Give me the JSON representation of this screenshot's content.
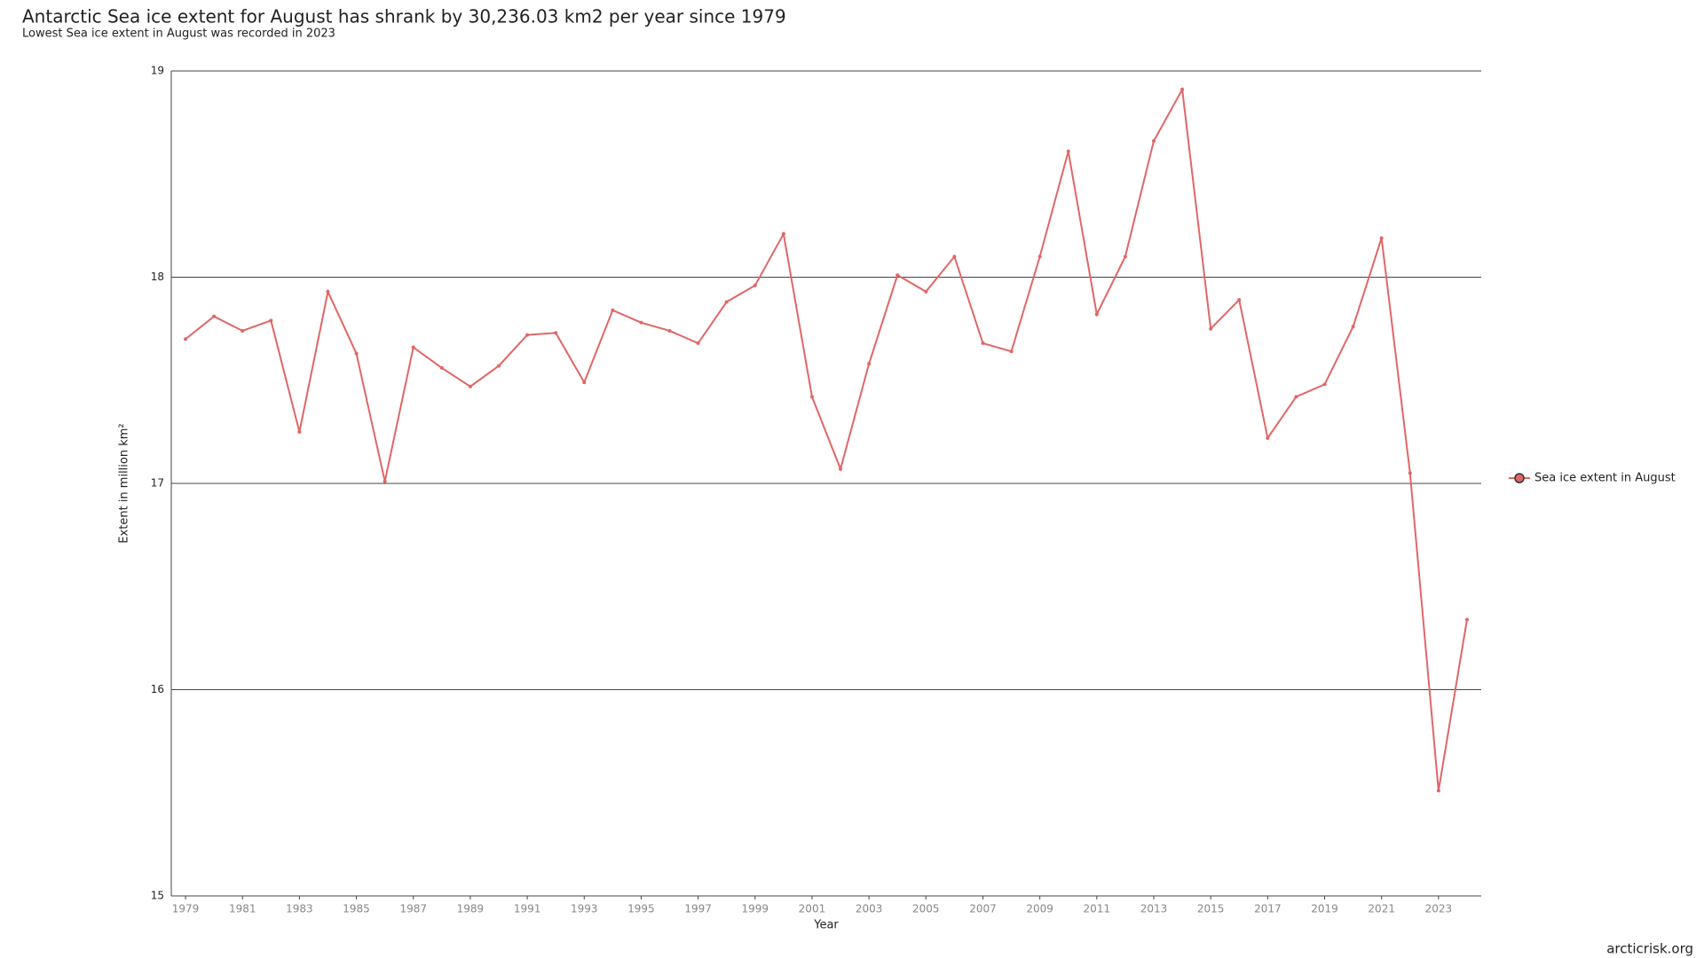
{
  "chart_data": {
    "type": "line",
    "title": "Antarctic Sea ice extent for August has shrank by 30,236.03 km2 per year since 1979",
    "subtitle": "Lowest Sea ice extent in August was recorded in 2023",
    "x_label": "Year",
    "y_label": "Extent in million km²",
    "x": [
      1979,
      1980,
      1981,
      1982,
      1983,
      1984,
      1985,
      1986,
      1987,
      1988,
      1989,
      1990,
      1991,
      1992,
      1993,
      1994,
      1995,
      1996,
      1997,
      1998,
      1999,
      2000,
      2001,
      2002,
      2003,
      2004,
      2005,
      2006,
      2007,
      2008,
      2009,
      2010,
      2011,
      2012,
      2013,
      2014,
      2015,
      2016,
      2017,
      2018,
      2019,
      2020,
      2021,
      2022,
      2023,
      2024
    ],
    "series": [
      {
        "name": "Sea ice extent in August",
        "color": "#e06666",
        "values": [
          17.7,
          17.81,
          17.74,
          17.79,
          17.25,
          17.93,
          17.63,
          17.01,
          17.66,
          17.56,
          17.47,
          17.57,
          17.72,
          17.73,
          17.49,
          17.84,
          17.78,
          17.74,
          17.68,
          17.88,
          17.96,
          18.21,
          17.42,
          17.07,
          17.58,
          18.01,
          17.93,
          18.1,
          17.68,
          17.64,
          18.1,
          18.61,
          17.82,
          18.1,
          18.66,
          18.91,
          17.75,
          17.89,
          17.22,
          17.42,
          17.48,
          17.76,
          18.19,
          17.05,
          15.51,
          16.34
        ]
      }
    ],
    "xlim": [
      1978.5,
      2024.5
    ],
    "xticks": [
      1979,
      1981,
      1983,
      1985,
      1987,
      1989,
      1991,
      1993,
      1995,
      1997,
      1999,
      2001,
      2003,
      2005,
      2007,
      2009,
      2011,
      2013,
      2015,
      2017,
      2019,
      2021,
      2023
    ],
    "ylim": [
      15,
      19
    ],
    "yticks": [
      15,
      16,
      17,
      18,
      19
    ],
    "grid": true,
    "legend": "right"
  },
  "footer": "arcticrisk.org"
}
